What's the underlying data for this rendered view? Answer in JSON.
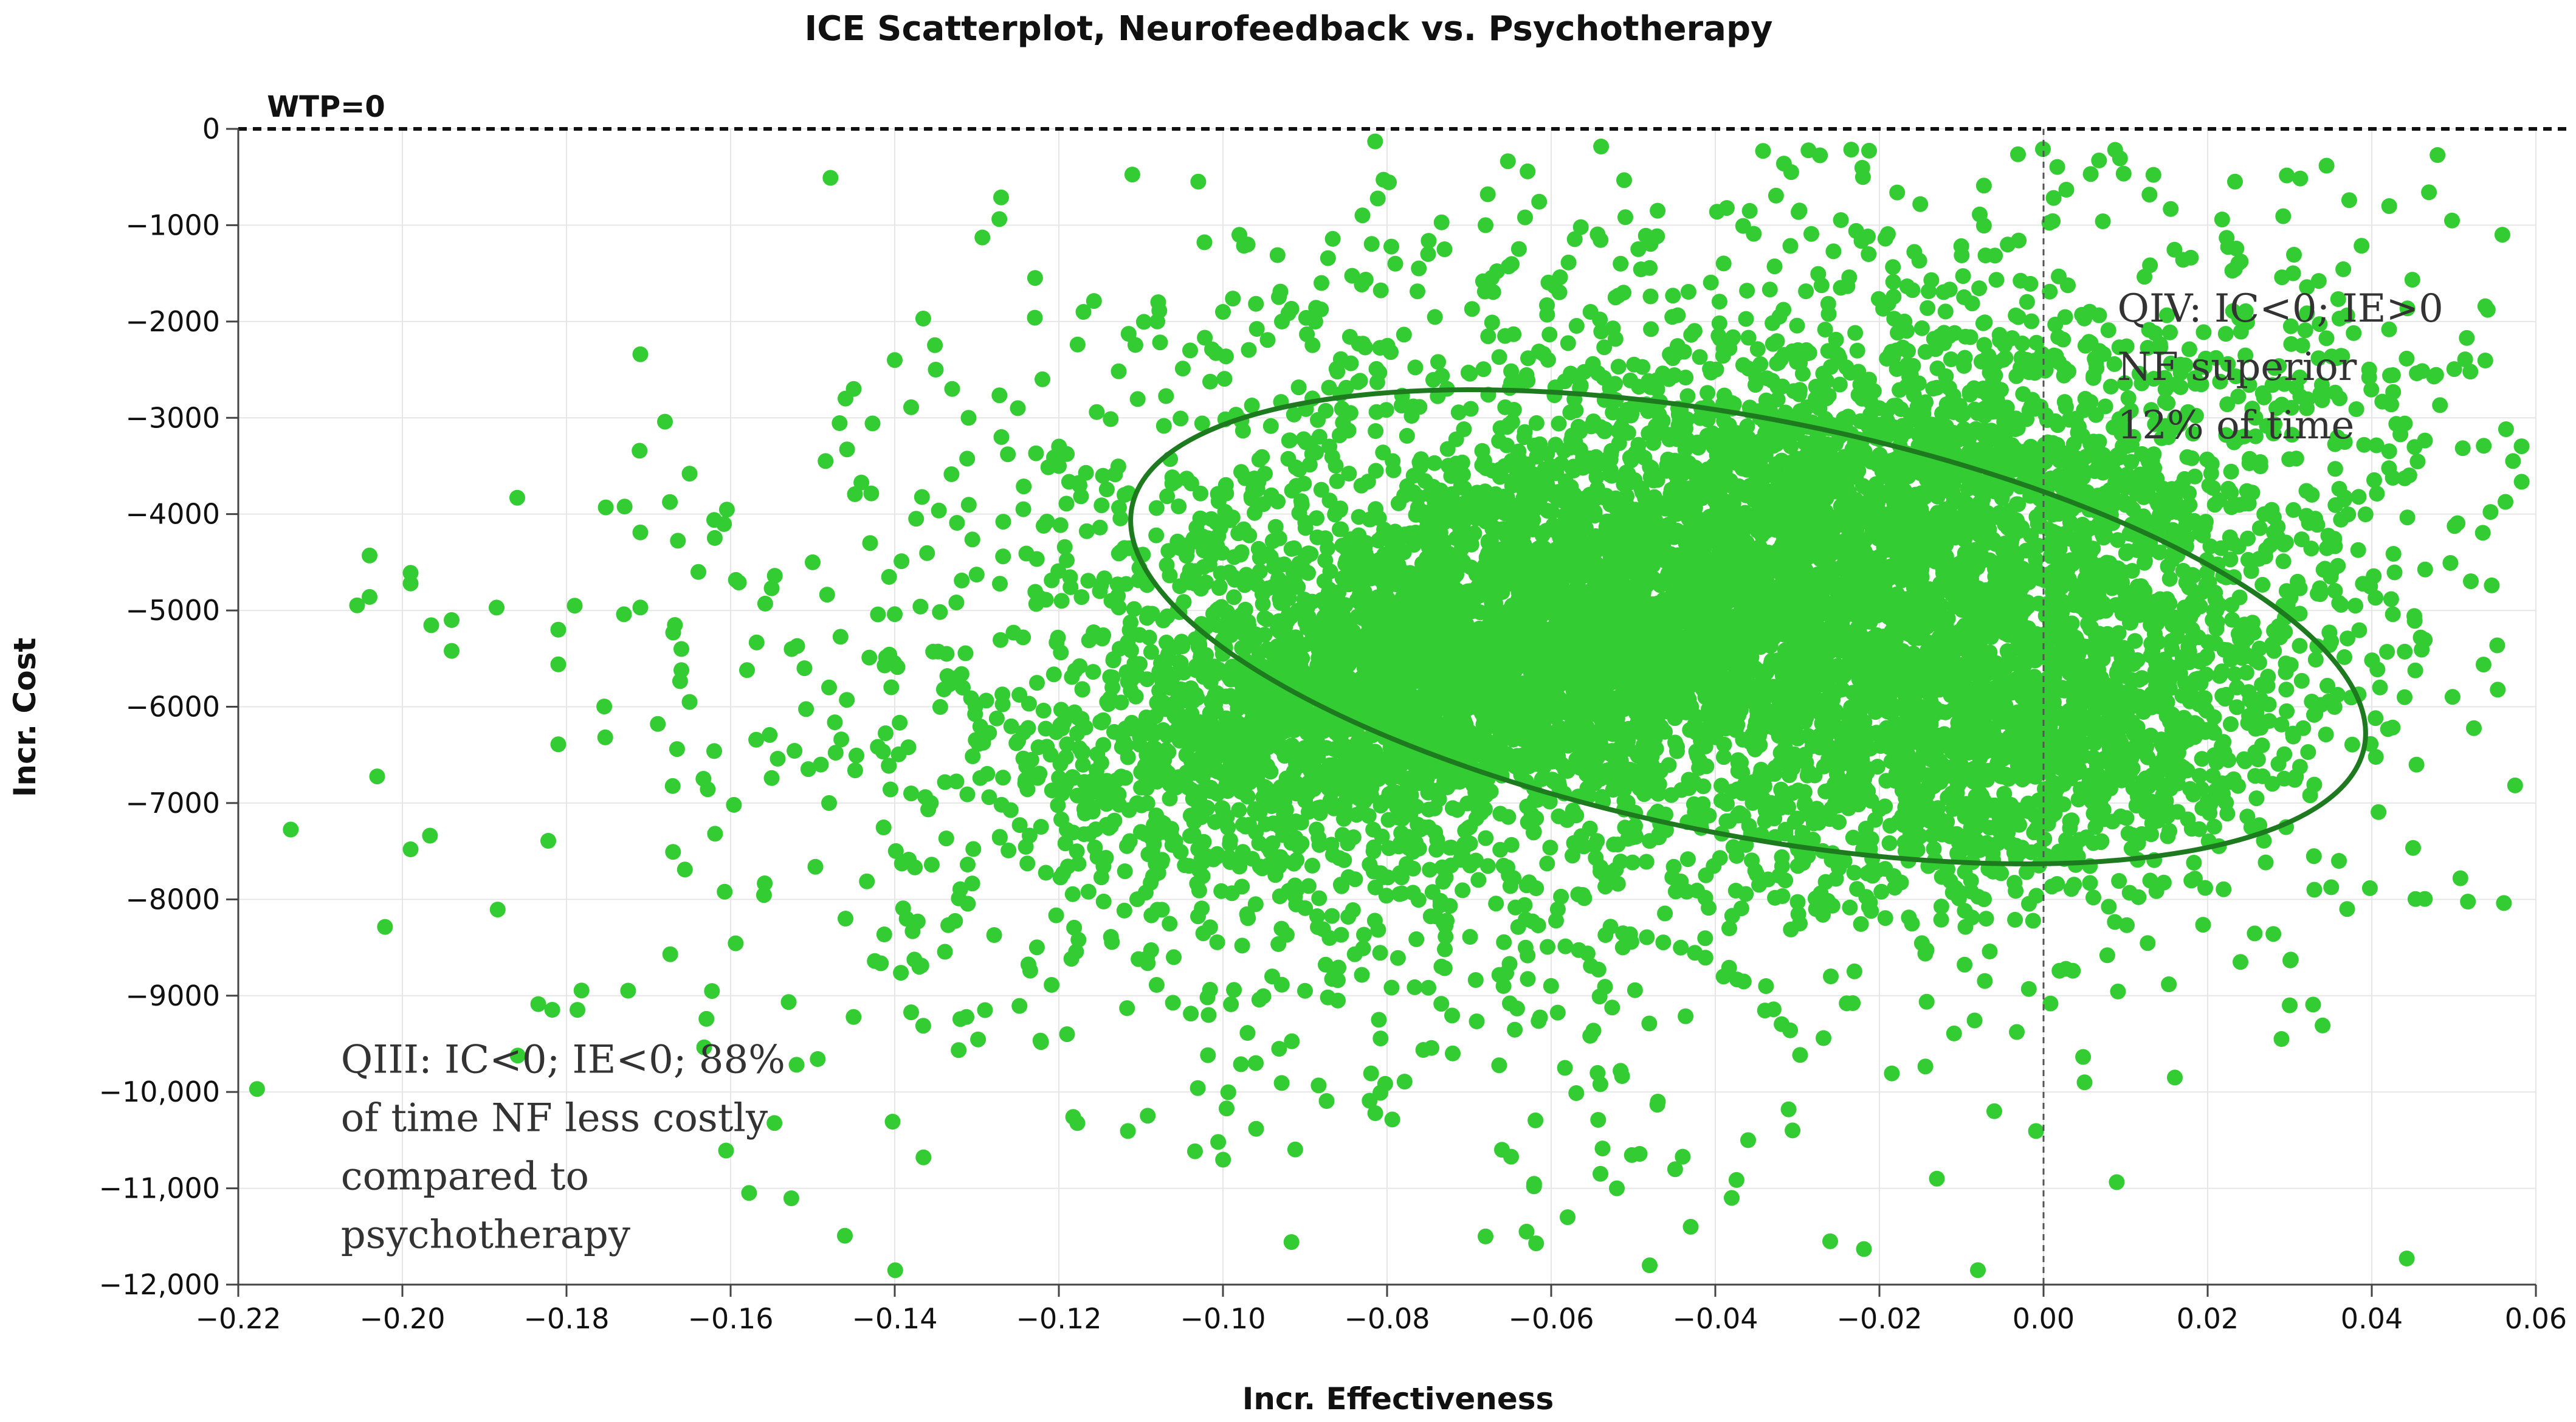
{
  "chart_data": {
    "type": "scatter",
    "title": "ICE Scatterplot, Neurofeedback vs. Psychotherapy",
    "xlabel": "Incr. Effectiveness",
    "ylabel": "Incr. Cost",
    "xlim": [
      -0.22,
      0.06
    ],
    "ylim": [
      -12000,
      0
    ],
    "x_ticks": [
      -0.22,
      -0.2,
      -0.18,
      -0.16,
      -0.14,
      -0.12,
      -0.1,
      -0.08,
      -0.06,
      -0.04,
      -0.02,
      0.0,
      0.02,
      0.04,
      0.06
    ],
    "x_tick_labels": [
      "−0.22",
      "−0.20",
      "−0.18",
      "−0.16",
      "−0.14",
      "−0.12",
      "−0.10",
      "−0.08",
      "−0.06",
      "−0.04",
      "−0.02",
      "0.00",
      "0.02",
      "0.04",
      "0.06"
    ],
    "y_ticks": [
      0,
      -1000,
      -2000,
      -3000,
      -4000,
      -5000,
      -6000,
      -7000,
      -8000,
      -9000,
      -10000,
      -11000,
      -12000
    ],
    "y_tick_labels": [
      "0",
      "−1000",
      "−2000",
      "−3000",
      "−4000",
      "−5000",
      "−6000",
      "−7000",
      "−8000",
      "−9000",
      "−10,000",
      "−11,000",
      "−12,000"
    ],
    "grid": true,
    "point_color": "#33cc33",
    "ellipse_color": "#1e7a1e",
    "wtp_line": {
      "label": "WTP=0",
      "y": 0
    },
    "reference_line_x": 0,
    "confidence_ellipse": {
      "center": [
        -0.036,
        -5170
      ],
      "rx": 0.0765,
      "ry": 3970,
      "rotation_deg": 11
    },
    "annotations": [
      {
        "lines": [
          "QIV: IC<0; IE>0",
          "NF superior",
          "12% of time"
        ],
        "x": 0.009,
        "y": -2000
      },
      {
        "lines": [
          "QIII: IC<0; IE<0; 88%",
          "of time NF less costly",
          "compared to",
          "psychotherapy"
        ],
        "x": -0.2075,
        "y": -9800
      }
    ],
    "series": [
      {
        "distribution": "scatter cloud of simulated ICE pairs",
        "points": [
          [
            -0.204,
            -4430
          ],
          [
            -0.204,
            -4860
          ],
          [
            -0.199,
            -4610
          ],
          [
            -0.199,
            -4720
          ],
          [
            -0.199,
            -7480
          ],
          [
            -0.194,
            -5100
          ],
          [
            -0.194,
            -5420
          ],
          [
            -0.186,
            -3830
          ],
          [
            -0.181,
            -5200
          ],
          [
            -0.181,
            -5560
          ],
          [
            -0.181,
            -6390
          ],
          [
            -0.179,
            -4950
          ],
          [
            -0.173,
            -5040
          ],
          [
            -0.171,
            -2340
          ],
          [
            -0.171,
            -4190
          ],
          [
            -0.171,
            -4970
          ],
          [
            -0.168,
            -3040
          ],
          [
            -0.167,
            -5230
          ],
          [
            -0.166,
            -5400
          ],
          [
            -0.166,
            -5620
          ],
          [
            -0.165,
            -3580
          ],
          [
            -0.165,
            -5950
          ],
          [
            -0.162,
            -4060
          ],
          [
            -0.162,
            -6460
          ],
          [
            -0.159,
            -4710
          ],
          [
            -0.158,
            -5620
          ],
          [
            -0.155,
            -4770
          ],
          [
            -0.151,
            -5600
          ],
          [
            -0.15,
            -4500
          ],
          [
            -0.149,
            -6600
          ],
          [
            -0.148,
            -5800
          ],
          [
            -0.148,
            -7000
          ],
          [
            -0.146,
            -2800
          ],
          [
            -0.146,
            -8200
          ],
          [
            -0.145,
            -2700
          ],
          [
            -0.143,
            -4300
          ],
          [
            -0.14,
            -2400
          ],
          [
            -0.138,
            -6900
          ],
          [
            -0.137,
            -8700
          ],
          [
            -0.135,
            -2500
          ],
          [
            -0.133,
            -2700
          ],
          [
            -0.131,
            -3000
          ],
          [
            -0.129,
            -9150
          ],
          [
            -0.127,
            -3200
          ],
          [
            -0.125,
            -2900
          ],
          [
            -0.122,
            -2600
          ],
          [
            -0.12,
            -3500
          ],
          [
            -0.119,
            -9400
          ],
          [
            -0.117,
            -1900
          ],
          [
            -0.115,
            -4800
          ],
          [
            -0.112,
            -3800
          ],
          [
            -0.11,
            -7300
          ],
          [
            -0.108,
            -2000
          ],
          [
            -0.106,
            -8600
          ],
          [
            -0.104,
            -2300
          ],
          [
            -0.1,
            -1900
          ],
          [
            -0.098,
            -1100
          ],
          [
            -0.097,
            -1200
          ],
          [
            -0.096,
            -9700
          ],
          [
            -0.094,
            -8800
          ],
          [
            -0.09,
            -8950
          ],
          [
            -0.088,
            -1600
          ],
          [
            -0.086,
            -9050
          ],
          [
            -0.081,
            -9250
          ],
          [
            -0.079,
            -1400
          ],
          [
            -0.075,
            -1300
          ],
          [
            -0.073,
            -1250
          ],
          [
            -0.072,
            -9600
          ],
          [
            -0.068,
            -1000
          ],
          [
            -0.068,
            -11500
          ],
          [
            -0.066,
            -10600
          ],
          [
            -0.063,
            -11450
          ],
          [
            -0.058,
            -11300
          ],
          [
            -0.054,
            -10850
          ],
          [
            -0.052,
            -11000
          ],
          [
            -0.048,
            -11800
          ],
          [
            -0.047,
            -10100
          ],
          [
            -0.043,
            -11400
          ],
          [
            -0.038,
            -11100
          ],
          [
            -0.036,
            -10500
          ],
          [
            -0.026,
            -11550
          ],
          [
            -0.013,
            -10900
          ],
          [
            -0.008,
            -11850
          ],
          [
            -0.006,
            -10200
          ],
          [
            0.005,
            -9900
          ],
          [
            0.016,
            -9850
          ],
          [
            0.024,
            -8650
          ],
          [
            0.029,
            -9450
          ],
          [
            0.03,
            -9100
          ],
          [
            0.033,
            -7900
          ],
          [
            0.036,
            -7600
          ],
          [
            0.037,
            -8100
          ],
          [
            0.035,
            -4650
          ],
          [
            0.038,
            -4950
          ],
          [
            0.041,
            -5800
          ],
          [
            0.044,
            -5900
          ]
        ]
      }
    ]
  }
}
